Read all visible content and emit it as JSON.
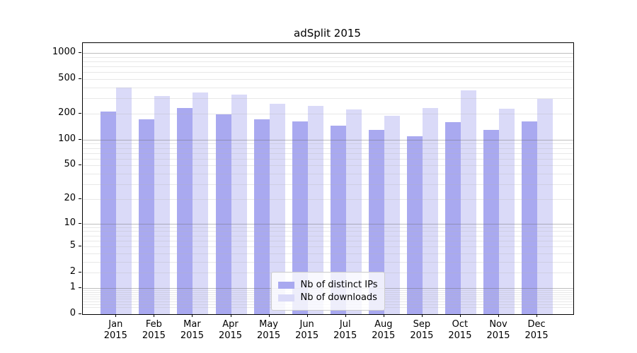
{
  "title": "adSplit 2015",
  "colors": {
    "ips_bar": "#a9a9f0",
    "downloads_bar": "#dadaf8",
    "axis": "#000000",
    "major_grid": "#b0b0b0",
    "minor_grid": "#e4e4e4"
  },
  "legend": {
    "items": [
      {
        "label": "Nb of distinct IPs"
      },
      {
        "label": "Nb of downloads"
      }
    ]
  },
  "chart_data": {
    "type": "bar",
    "title": "adSplit 2015",
    "categories": [
      "Jan 2015",
      "Feb 2015",
      "Mar 2015",
      "Apr 2015",
      "May 2015",
      "Jun 2015",
      "Jul 2015",
      "Aug 2015",
      "Sep 2015",
      "Oct 2015",
      "Nov 2015",
      "Dec 2015"
    ],
    "series": [
      {
        "name": "Nb of distinct IPs",
        "values": [
          213,
          172,
          234,
          196,
          172,
          164,
          145,
          131,
          109,
          161,
          129,
          163
        ]
      },
      {
        "name": "Nb of downloads",
        "values": [
          402,
          320,
          351,
          334,
          260,
          246,
          224,
          190,
          234,
          369,
          227,
          297
        ]
      }
    ],
    "xlabel": "",
    "ylabel": "",
    "y_scale": "log1p",
    "y_ticks": [
      0,
      1,
      2,
      5,
      10,
      20,
      50,
      100,
      200,
      500,
      1000
    ],
    "ylim": [
      0,
      1300
    ],
    "grid": true,
    "legend_position": "lower center"
  }
}
